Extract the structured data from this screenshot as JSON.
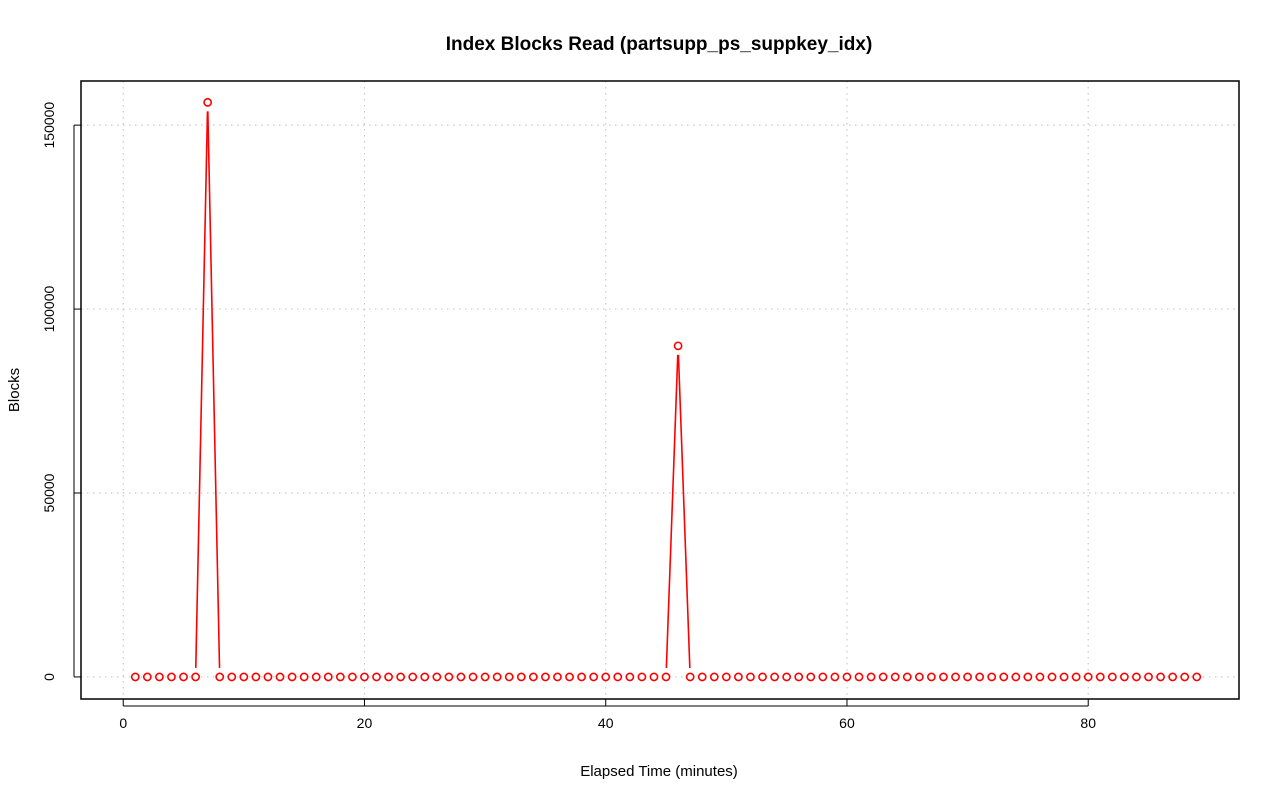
{
  "chart_data": {
    "type": "line",
    "title": "Index Blocks Read (partsupp_ps_suppkey_idx)",
    "xlabel": "Elapsed Time (minutes)",
    "ylabel": "Blocks",
    "xlim": [
      -3.5,
      92.5
    ],
    "ylim": [
      -6000,
      162000
    ],
    "x_ticks": [
      0,
      20,
      40,
      60,
      80
    ],
    "x_tick_labels": [
      "0",
      "20",
      "40",
      "60",
      "80"
    ],
    "y_ticks": [
      0,
      50000,
      100000,
      150000
    ],
    "y_tick_labels": [
      "0",
      "50000",
      "100000",
      "150000"
    ],
    "grid": true,
    "line_color": "#ff0000",
    "point_style": "open-circle",
    "series": [
      {
        "x": [
          1,
          2,
          3,
          4,
          5,
          6,
          7,
          8,
          9,
          10,
          11,
          12,
          13,
          14,
          15,
          16,
          17,
          18,
          19,
          20,
          21,
          22,
          23,
          24,
          25,
          26,
          27,
          28,
          29,
          30,
          31,
          32,
          33,
          34,
          35,
          36,
          37,
          38,
          39,
          40,
          41,
          42,
          43,
          44,
          45,
          46,
          47,
          48,
          49,
          50,
          51,
          52,
          53,
          54,
          55,
          56,
          57,
          58,
          59,
          60,
          61,
          62,
          63,
          64,
          65,
          66,
          67,
          68,
          69,
          70,
          71,
          72,
          73,
          74,
          75,
          76,
          77,
          78,
          79,
          80,
          81,
          82,
          83,
          84,
          85,
          86,
          87,
          88,
          89
        ],
        "y": [
          0,
          0,
          0,
          0,
          0,
          0,
          156200,
          0,
          0,
          0,
          0,
          0,
          0,
          0,
          0,
          0,
          0,
          0,
          0,
          0,
          0,
          0,
          0,
          0,
          0,
          0,
          0,
          0,
          0,
          0,
          0,
          0,
          0,
          0,
          0,
          0,
          0,
          0,
          0,
          0,
          0,
          0,
          0,
          0,
          0,
          90000,
          0,
          0,
          0,
          0,
          0,
          0,
          0,
          0,
          0,
          0,
          0,
          0,
          0,
          0,
          0,
          0,
          0,
          0,
          0,
          0,
          0,
          0,
          0,
          0,
          0,
          0,
          0,
          0,
          0,
          0,
          0,
          0,
          0,
          0,
          0,
          0,
          0,
          0,
          0,
          0,
          0,
          0,
          0
        ]
      }
    ]
  }
}
